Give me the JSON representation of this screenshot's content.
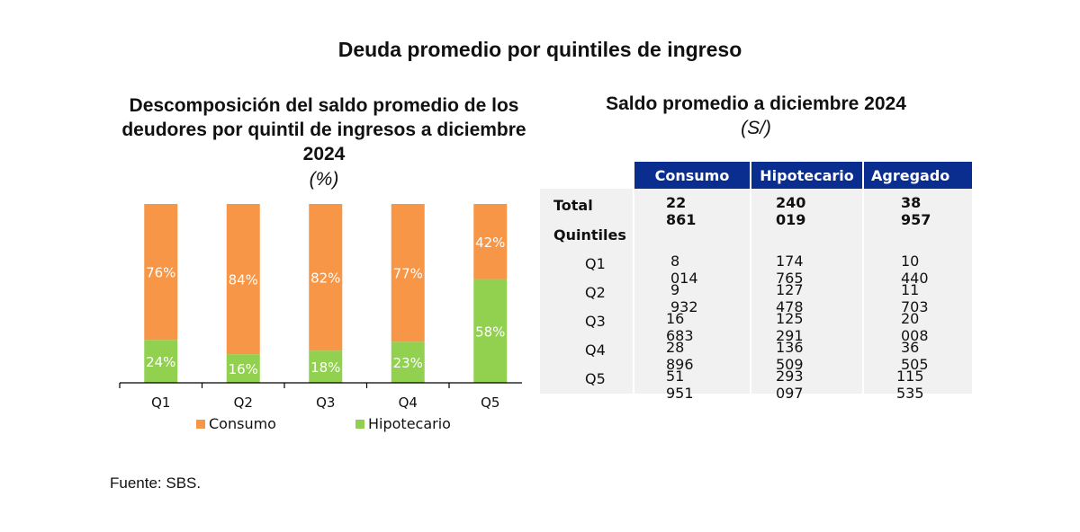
{
  "main_title": "Deuda promedio por quintiles de ingreso",
  "left_panel": {
    "title_lines": [
      "Descomposición del saldo promedio de los",
      "deudores por quintil de ingresos a diciembre",
      "2024"
    ],
    "unit": "(%)"
  },
  "right_panel": {
    "title": "Saldo promedio a diciembre 2024",
    "unit": "(S/)"
  },
  "chart_data": {
    "type": "bar",
    "stacked": true,
    "categories": [
      "Q1",
      "Q2",
      "Q3",
      "Q4",
      "Q5"
    ],
    "series": [
      {
        "name": "Hipotecario",
        "values": [
          24,
          16,
          18,
          23,
          58
        ],
        "labels": [
          "24%",
          "16%",
          "18%",
          "23%",
          "58%"
        ],
        "color": "#92d050"
      },
      {
        "name": "Consumo",
        "values": [
          76,
          84,
          82,
          77,
          42
        ],
        "labels": [
          "76%",
          "84%",
          "82%",
          "77%",
          "42%"
        ],
        "color": "#f79646"
      }
    ],
    "ylim": [
      0,
      100
    ],
    "legend": "bottom",
    "grid": false
  },
  "table": {
    "headers": [
      "Consumo",
      "Hipotecario",
      "Agregado"
    ],
    "total_label": "Total",
    "total_values": [
      "22 861",
      "240 019",
      "38 957"
    ],
    "section_label": "Quintiles",
    "rows": [
      {
        "label": "Q1",
        "values": [
          "8 014",
          "174 765",
          "10 440"
        ]
      },
      {
        "label": "Q2",
        "values": [
          "9 932",
          "127 478",
          "11 703"
        ]
      },
      {
        "label": "Q3",
        "values": [
          "16 683",
          "125 291",
          "20 008"
        ]
      },
      {
        "label": "Q4",
        "values": [
          "28 896",
          "136 509",
          "36 505"
        ]
      },
      {
        "label": "Q5",
        "values": [
          "51 951",
          "293 097",
          "115 535"
        ]
      }
    ],
    "header_color": "#0a2e8f"
  },
  "source": "Fuente: SBS."
}
